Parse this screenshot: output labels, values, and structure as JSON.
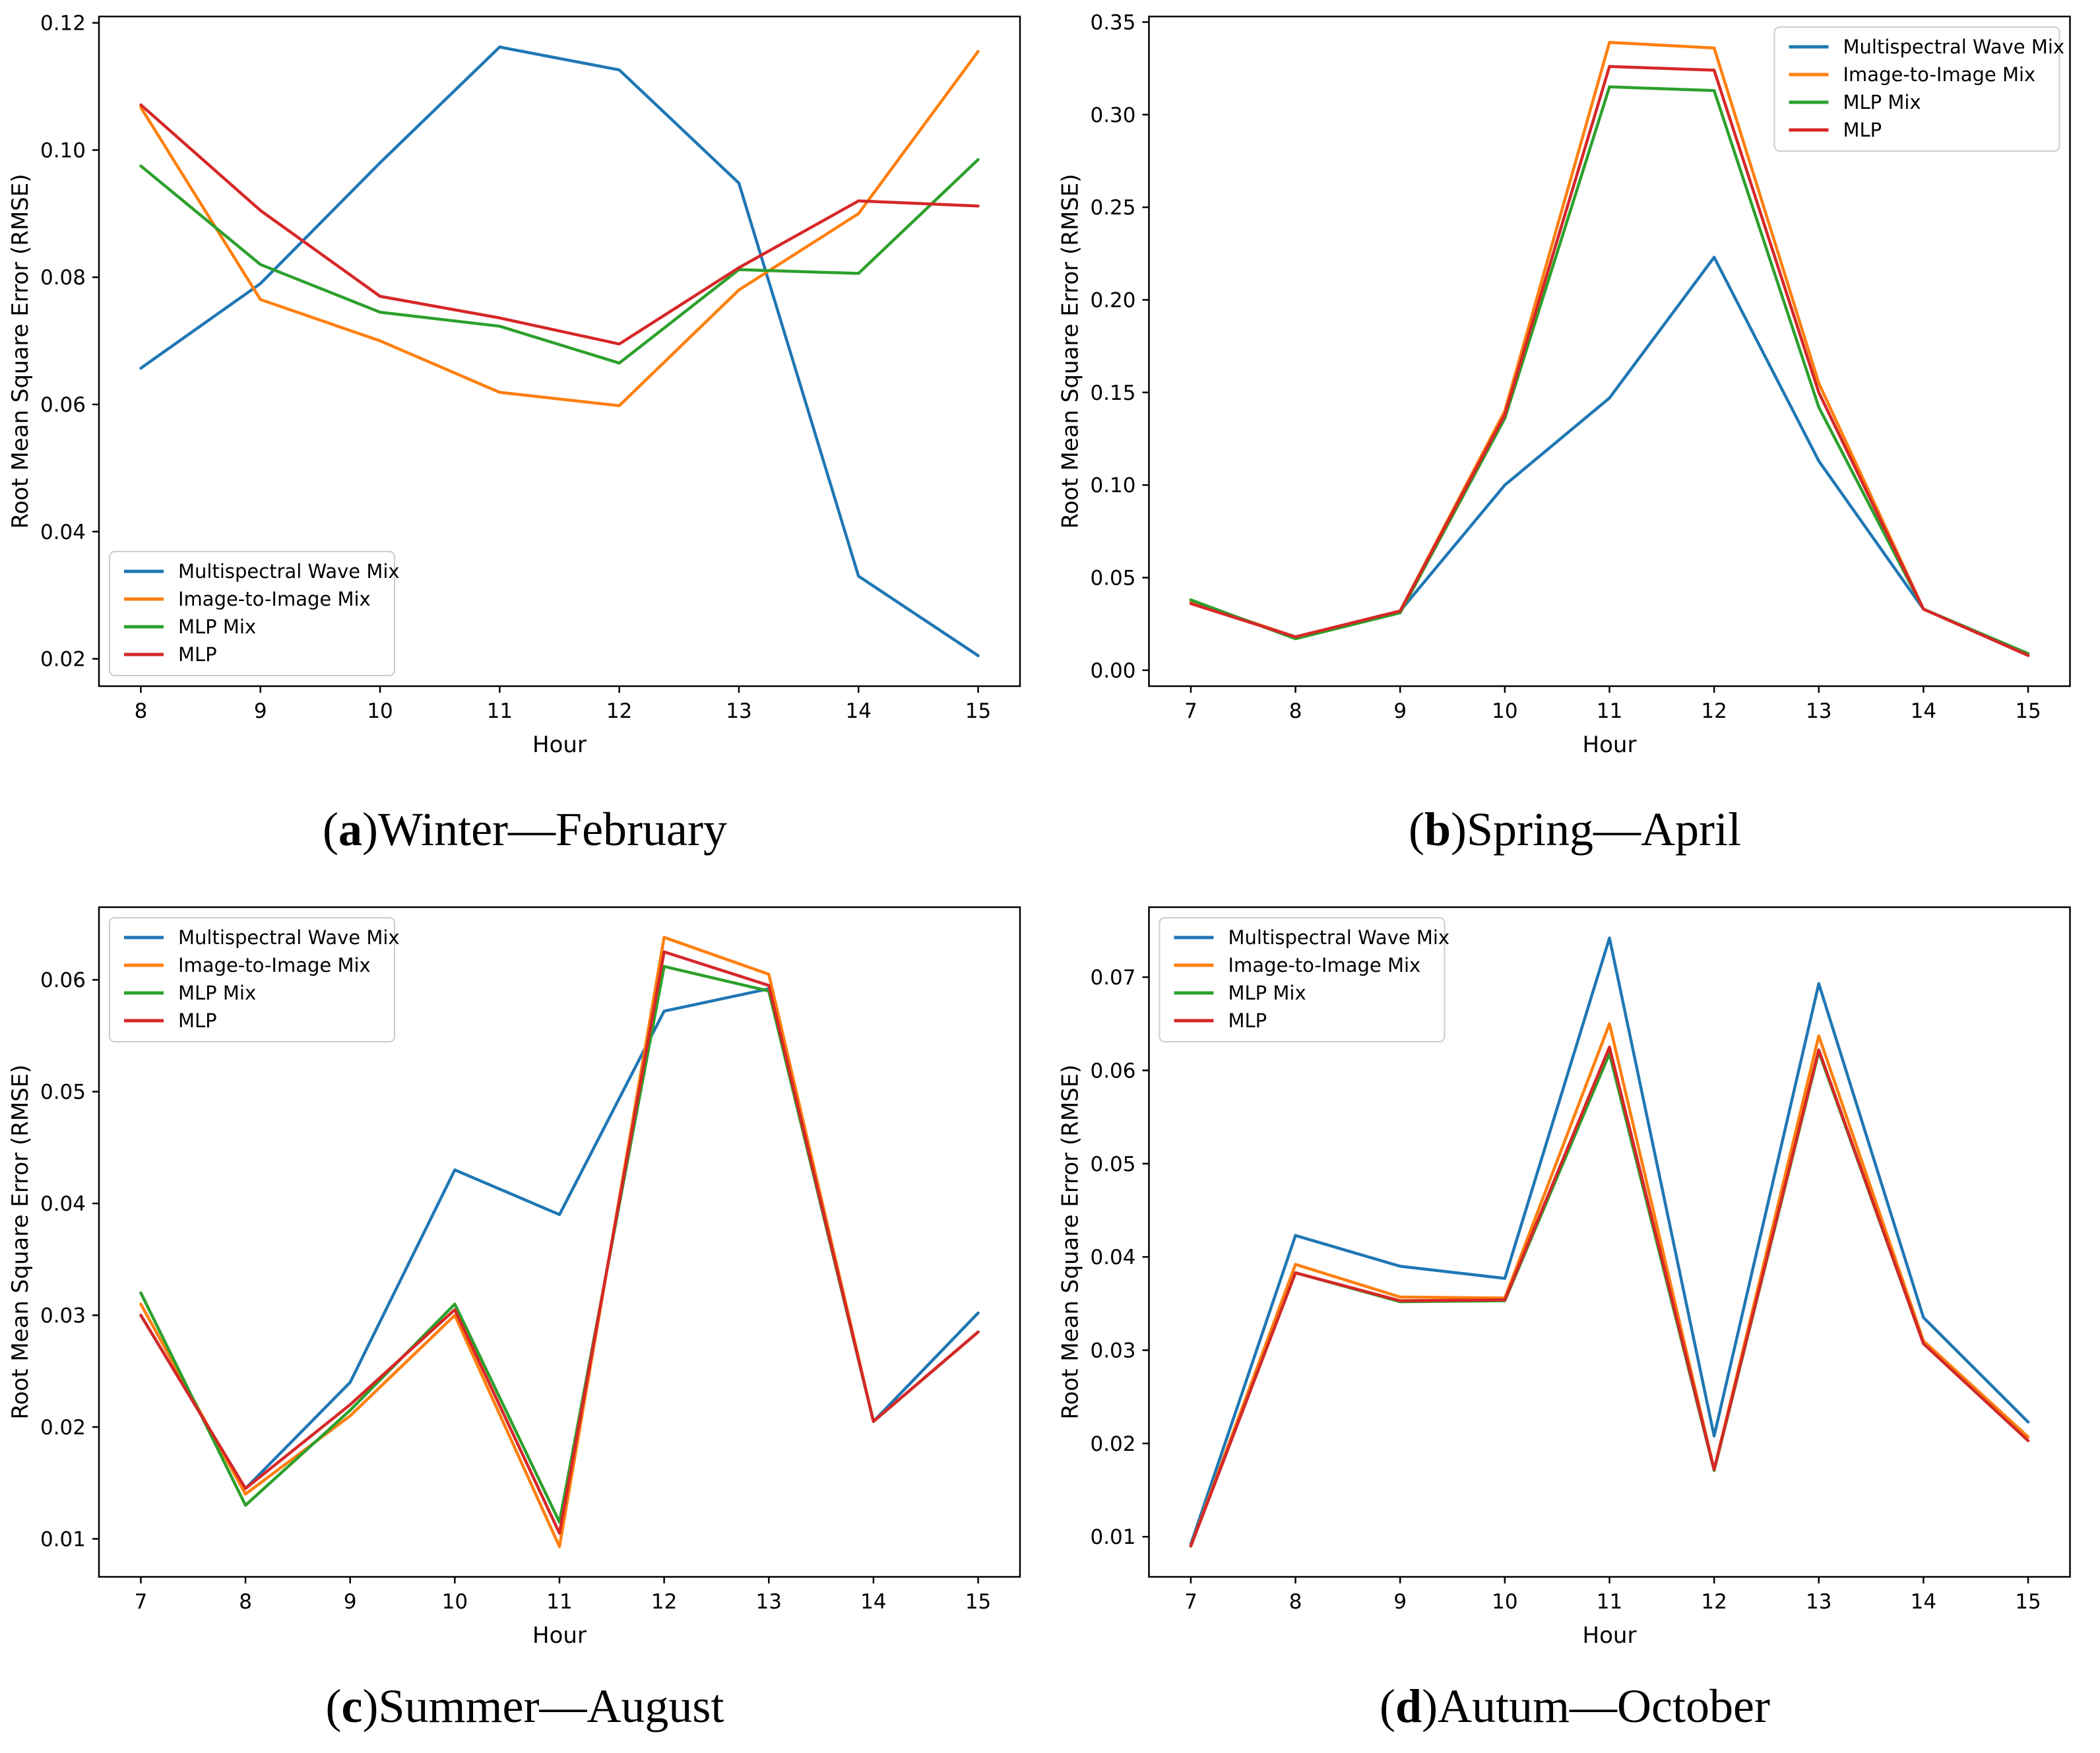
{
  "page": {
    "background": "#ffffff"
  },
  "chart_data": [
    {
      "type": "line",
      "id": "a",
      "caption": {
        "pre": "(",
        "letter": "a",
        "post": ")",
        "text": " Winter—February"
      },
      "xlabel": "Hour",
      "ylabel": "Root Mean Square Error (RMSE)",
      "x": [
        8,
        9,
        10,
        11,
        12,
        13,
        14,
        15
      ],
      "xticks": [
        8,
        9,
        10,
        11,
        12,
        13,
        14,
        15
      ],
      "xlim": [
        7.65,
        15.35
      ],
      "yticks": [
        0.02,
        0.04,
        0.06,
        0.08,
        0.1,
        0.12
      ],
      "ylim": [
        0.0157,
        0.121
      ],
      "ytick_decimals": 2,
      "grid": false,
      "legend_position": "lower-left",
      "series": [
        {
          "name": "Multispectral Wave Mix",
          "color": "#1f77b4",
          "values": [
            0.0657,
            0.079,
            0.098,
            0.1162,
            0.1126,
            0.0948,
            0.033,
            0.0205
          ]
        },
        {
          "name": "Image-to-Image Mix",
          "color": "#ff7f0e",
          "values": [
            0.1067,
            0.0765,
            0.07,
            0.0619,
            0.0598,
            0.078,
            0.09,
            0.1155
          ]
        },
        {
          "name": "MLP Mix",
          "color": "#2ca02c",
          "values": [
            0.0975,
            0.082,
            0.0745,
            0.0723,
            0.0665,
            0.0812,
            0.0806,
            0.0985
          ]
        },
        {
          "name": "MLP",
          "color": "#d62728",
          "values": [
            0.1071,
            0.0905,
            0.077,
            0.0736,
            0.0695,
            0.0815,
            0.092,
            0.0912
          ]
        }
      ]
    },
    {
      "type": "line",
      "id": "b",
      "caption": {
        "pre": "(",
        "letter": "b",
        "post": ")",
        "text": " Spring—April"
      },
      "xlabel": "Hour",
      "ylabel": "Root Mean Square Error (RMSE)",
      "x": [
        7,
        8,
        9,
        10,
        11,
        12,
        13,
        14,
        15
      ],
      "xticks": [
        7,
        8,
        9,
        10,
        11,
        12,
        13,
        14,
        15
      ],
      "xlim": [
        6.6,
        15.4
      ],
      "yticks": [
        0.0,
        0.05,
        0.1,
        0.15,
        0.2,
        0.25,
        0.3,
        0.35
      ],
      "ylim": [
        -0.0086,
        0.353
      ],
      "ytick_decimals": 2,
      "grid": false,
      "legend_position": "upper-right",
      "series": [
        {
          "name": "Multispectral Wave Mix",
          "color": "#1f77b4",
          "values": [
            0.037,
            0.018,
            0.032,
            0.1,
            0.147,
            0.223,
            0.113,
            0.033,
            0.008
          ]
        },
        {
          "name": "Image-to-Image Mix",
          "color": "#ff7f0e",
          "values": [
            0.037,
            0.018,
            0.032,
            0.14,
            0.339,
            0.336,
            0.155,
            0.033,
            0.008
          ]
        },
        {
          "name": "MLP Mix",
          "color": "#2ca02c",
          "values": [
            0.038,
            0.017,
            0.031,
            0.136,
            0.315,
            0.313,
            0.142,
            0.033,
            0.009
          ]
        },
        {
          "name": "MLP",
          "color": "#d62728",
          "values": [
            0.036,
            0.018,
            0.032,
            0.138,
            0.326,
            0.324,
            0.15,
            0.033,
            0.008
          ]
        }
      ]
    },
    {
      "type": "line",
      "id": "c",
      "caption": {
        "pre": "(",
        "letter": "c",
        "post": ")",
        "text": " Summer—August"
      },
      "xlabel": "Hour",
      "ylabel": "Root Mean Square Error (RMSE)",
      "x": [
        7,
        8,
        9,
        10,
        11,
        12,
        13,
        14,
        15
      ],
      "xticks": [
        7,
        8,
        9,
        10,
        11,
        12,
        13,
        14,
        15
      ],
      "xlim": [
        6.6,
        15.4
      ],
      "yticks": [
        0.01,
        0.02,
        0.03,
        0.04,
        0.05,
        0.06
      ],
      "ylim": [
        0.0066,
        0.0665
      ],
      "ytick_decimals": 2,
      "grid": false,
      "legend_position": "upper-left",
      "series": [
        {
          "name": "Multispectral Wave Mix",
          "color": "#1f77b4",
          "values": [
            0.03,
            0.0145,
            0.024,
            0.043,
            0.039,
            0.0572,
            0.0592,
            0.0205,
            0.0302
          ]
        },
        {
          "name": "Image-to-Image Mix",
          "color": "#ff7f0e",
          "values": [
            0.031,
            0.014,
            0.021,
            0.03,
            0.0093,
            0.0638,
            0.0605,
            0.0205,
            0.0285
          ]
        },
        {
          "name": "MLP Mix",
          "color": "#2ca02c",
          "values": [
            0.032,
            0.013,
            0.0215,
            0.031,
            0.0115,
            0.0612,
            0.059,
            0.0205,
            0.0285
          ]
        },
        {
          "name": "MLP",
          "color": "#d62728",
          "values": [
            0.03,
            0.0145,
            0.022,
            0.0305,
            0.0105,
            0.0625,
            0.0595,
            0.0205,
            0.0285
          ]
        }
      ]
    },
    {
      "type": "line",
      "id": "d",
      "caption": {
        "pre": "(",
        "letter": "d",
        "post": ")",
        "text": " Autum—October"
      },
      "xlabel": "Hour",
      "ylabel": "Root Mean Square Error (RMSE)",
      "x": [
        7,
        8,
        9,
        10,
        11,
        12,
        13,
        14,
        15
      ],
      "xticks": [
        7,
        8,
        9,
        10,
        11,
        12,
        13,
        14,
        15
      ],
      "xlim": [
        6.6,
        15.4
      ],
      "yticks": [
        0.01,
        0.02,
        0.03,
        0.04,
        0.05,
        0.06,
        0.07
      ],
      "ylim": [
        0.0057,
        0.0775
      ],
      "ytick_decimals": 2,
      "grid": false,
      "legend_position": "upper-left",
      "series": [
        {
          "name": "Multispectral Wave Mix",
          "color": "#1f77b4",
          "values": [
            0.0092,
            0.0423,
            0.039,
            0.0377,
            0.0742,
            0.0208,
            0.0693,
            0.0335,
            0.0223
          ]
        },
        {
          "name": "Image-to-Image Mix",
          "color": "#ff7f0e",
          "values": [
            0.009,
            0.0392,
            0.0357,
            0.0356,
            0.065,
            0.0172,
            0.0637,
            0.031,
            0.0207
          ]
        },
        {
          "name": "MLP Mix",
          "color": "#2ca02c",
          "values": [
            0.009,
            0.0383,
            0.0352,
            0.0353,
            0.0618,
            0.0171,
            0.062,
            0.0307,
            0.0203
          ]
        },
        {
          "name": "MLP",
          "color": "#d62728",
          "values": [
            0.009,
            0.0383,
            0.0353,
            0.0354,
            0.0625,
            0.0172,
            0.0622,
            0.0307,
            0.0203
          ]
        }
      ]
    }
  ],
  "style": {
    "axis_color": "#000000",
    "legend_border_color": "#cccccc",
    "legend_bg_color": "#ffffff"
  }
}
